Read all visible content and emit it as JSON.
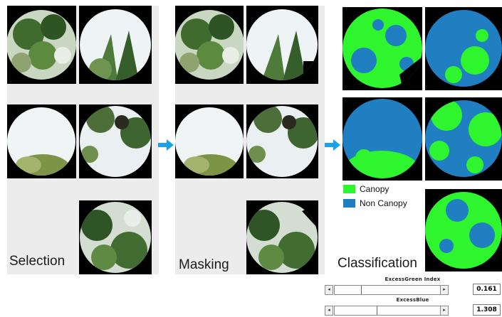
{
  "stages": {
    "selection": "Selection",
    "masking": "Masking",
    "classification": "Classification"
  },
  "legend": {
    "canopy_label": "Canopy",
    "canopy_color": "#2ff52f",
    "non_canopy_label": "Non Canopy",
    "non_canopy_color": "#1f7fc0"
  },
  "controls": {
    "excess_green": {
      "title": "ExcessGreen Index",
      "value": "0.161",
      "level": 0.25
    },
    "excess_blue": {
      "title": "ExcessBlue",
      "value": "1.308",
      "level": 0.4
    }
  },
  "colors": {
    "arrow": "#1aa1e6",
    "panel": "#ececec"
  }
}
